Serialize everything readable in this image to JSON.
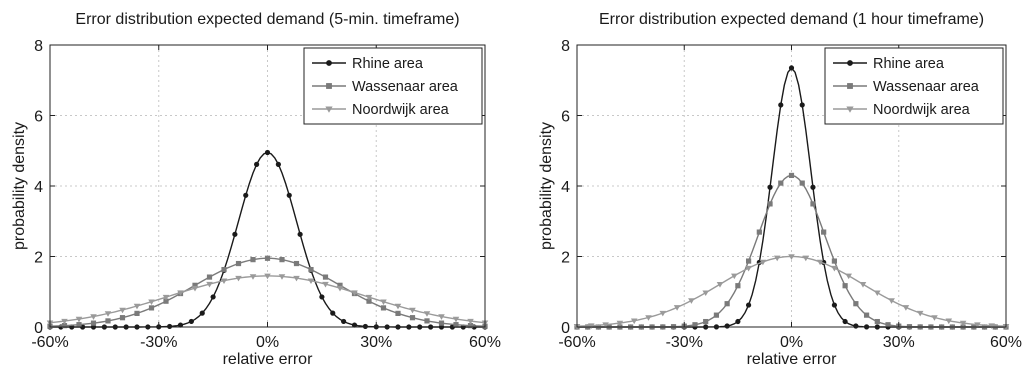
{
  "chart_data": [
    {
      "type": "line",
      "title": "Error distribution expected demand (5-min. timeframe)",
      "xlabel": "relative error",
      "ylabel": "probability density",
      "xlim": [
        -60,
        60
      ],
      "ylim": [
        0,
        8
      ],
      "x_unit": "%",
      "xticks": [
        "-60%",
        "-30%",
        "0%",
        "30%",
        "60%"
      ],
      "yticks": [
        "0",
        "2",
        "4",
        "6",
        "8"
      ],
      "grid": true,
      "legend_position": "top-right",
      "series": [
        {
          "name": "Rhine area",
          "color": "#1a1a1a",
          "marker": "circle",
          "peak": 4.95,
          "sigma": 8.0
        },
        {
          "name": "Wassenaar area",
          "color": "#7a7a7a",
          "marker": "square",
          "peak": 1.95,
          "sigma": 20.0
        },
        {
          "name": "Noordwijk area",
          "color": "#9a9a9a",
          "marker": "triangle-down",
          "peak": 1.45,
          "sigma": 27.0
        }
      ]
    },
    {
      "type": "line",
      "title": "Error distribution expected demand (1 hour timeframe)",
      "xlabel": "relative error",
      "ylabel": "probability density",
      "xlim": [
        -60,
        60
      ],
      "ylim": [
        0,
        8
      ],
      "x_unit": "%",
      "xticks": [
        "-60%",
        "-30%",
        "0%",
        "30%",
        "60%"
      ],
      "yticks": [
        "0",
        "2",
        "4",
        "6",
        "8"
      ],
      "grid": true,
      "legend_position": "top-right",
      "series": [
        {
          "name": "Rhine area",
          "color": "#1a1a1a",
          "marker": "circle",
          "peak": 7.35,
          "sigma": 5.4
        },
        {
          "name": "Wassenaar area",
          "color": "#7a7a7a",
          "marker": "square",
          "peak": 4.3,
          "sigma": 9.3
        },
        {
          "name": "Noordwijk area",
          "color": "#9a9a9a",
          "marker": "triangle-down",
          "peak": 2.0,
          "sigma": 20.0
        }
      ]
    }
  ]
}
